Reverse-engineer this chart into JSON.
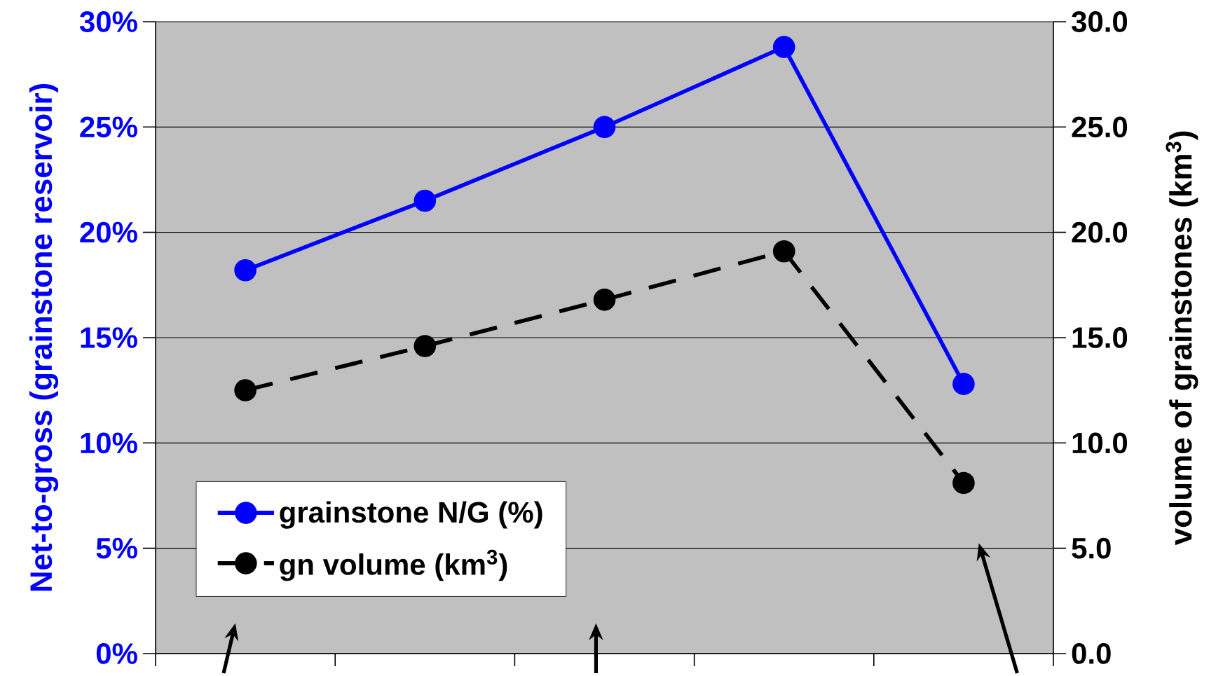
{
  "chart_data": {
    "type": "line",
    "ylabel": "Net-to-gross (grainstone reservoir)",
    "y2label": "volume of grainstones  (km$^{3}$)",
    "categories": [
      null,
      null,
      null,
      null,
      null
    ],
    "series": [
      {
        "name": "grainstone N/G (%)",
        "color": "#0000ff",
        "line_style": "solid",
        "values": [
          18.2,
          21.5,
          25.0,
          28.8,
          12.8
        ]
      },
      {
        "name": "gn volume  (km$^{3}$)",
        "color": "#000000",
        "line_style": "dashed",
        "axis": "y2",
        "values": [
          12.5,
          14.6,
          16.8,
          19.1,
          8.1
        ]
      }
    ],
    "ylim": [
      0,
      30
    ],
    "yticks": [
      {
        "value": 0,
        "label": "0%"
      },
      {
        "value": 5,
        "label": "5%"
      },
      {
        "value": 10,
        "label": "10%"
      },
      {
        "value": 15,
        "label": "15%"
      },
      {
        "value": 20,
        "label": "20%"
      },
      {
        "value": 25,
        "label": "25%"
      },
      {
        "value": 30,
        "label": "30%"
      }
    ],
    "y2lim": [
      0,
      30
    ],
    "y2ticks": [
      {
        "value": 0,
        "label": "0.0"
      },
      {
        "value": 5,
        "label": "5.0"
      },
      {
        "value": 10,
        "label": "10.0"
      },
      {
        "value": 15,
        "label": "15.0"
      },
      {
        "value": 20,
        "label": "20.0"
      },
      {
        "value": 25,
        "label": "25.0"
      },
      {
        "value": 30,
        "label": "30.0"
      }
    ],
    "grid": "y",
    "legend": "bottom left",
    "marker": "circle",
    "tick_labels": "y"
  }
}
